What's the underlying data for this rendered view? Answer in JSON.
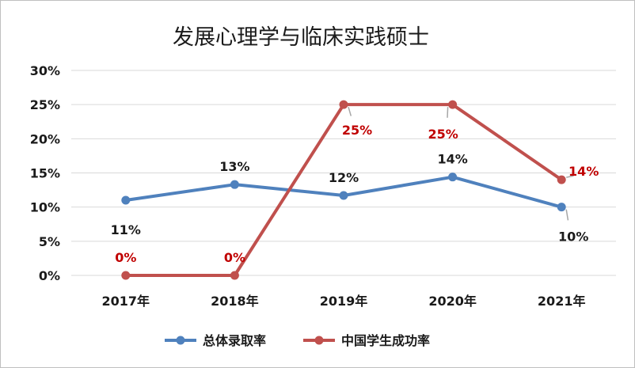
{
  "chart_data": {
    "type": "line",
    "title": "发展心理学与临床实践硕士",
    "categories": [
      "2017年",
      "2018年",
      "2019年",
      "2020年",
      "2021年"
    ],
    "y_ticks": [
      "0%",
      "5%",
      "10%",
      "15%",
      "20%",
      "25%",
      "30%"
    ],
    "ylim": [
      0,
      30
    ],
    "grid": "horizontal",
    "legend_position": "bottom",
    "series": [
      {
        "name": "总体录取率",
        "color": "#4f81bd",
        "values": [
          11,
          13.3,
          11.7,
          14.4,
          10
        ],
        "labels": [
          "11%",
          "13%",
          "12%",
          "14%",
          "10%"
        ],
        "label_color": "#1a1a1a"
      },
      {
        "name": "中国学生成功率",
        "color": "#c0504d",
        "values": [
          0,
          0,
          25,
          25,
          14
        ],
        "labels": [
          "0%",
          "0%",
          "25%",
          "25%",
          "14%"
        ],
        "label_color": "#c00000"
      }
    ]
  }
}
